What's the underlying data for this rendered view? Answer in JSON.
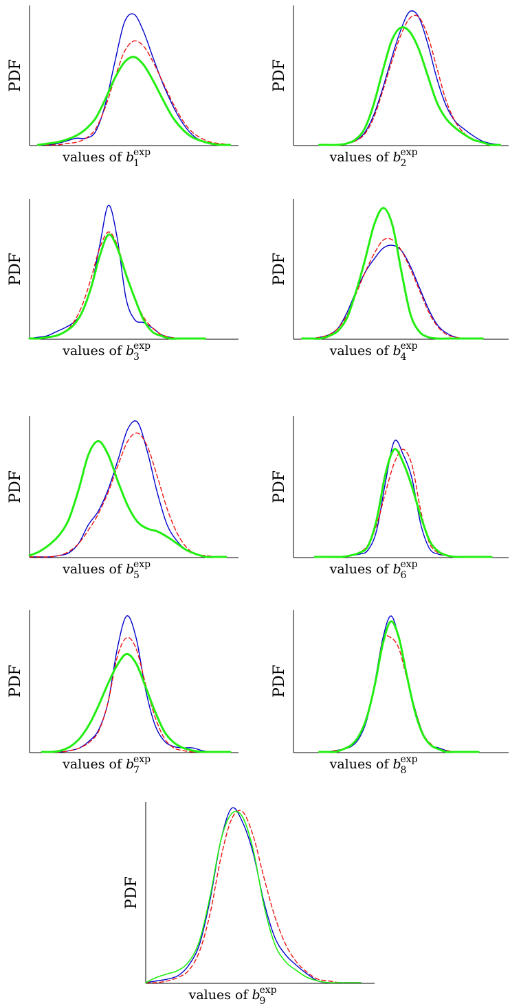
{
  "chart_data": [
    {
      "type": "line",
      "ylabel": "PDF",
      "xlabel": "values of",
      "var": "b",
      "sub": "1",
      "sup": "exp",
      "x": [
        0,
        0.05,
        0.1,
        0.15,
        0.2,
        0.25,
        0.3,
        0.35,
        0.4,
        0.45,
        0.5,
        0.55,
        0.6,
        0.65,
        0.7,
        0.75,
        0.8,
        0.85,
        0.9,
        0.95,
        1
      ],
      "series": [
        {
          "color": "#0000cc",
          "style": "solid",
          "width": 1.4,
          "y": [
            0,
            0,
            0.01,
            0.03,
            0.05,
            0.05,
            0.1,
            0.3,
            0.62,
            0.92,
            0.98,
            0.85,
            0.65,
            0.46,
            0.3,
            0.17,
            0.08,
            0.03,
            0.01,
            0,
            0
          ]
        },
        {
          "color": "#ee1111",
          "style": "dashed",
          "width": 1.4,
          "y": [
            0,
            0,
            0,
            0.01,
            0.02,
            0.05,
            0.12,
            0.28,
            0.5,
            0.7,
            0.78,
            0.74,
            0.62,
            0.47,
            0.32,
            0.19,
            0.1,
            0.05,
            0.02,
            0.01,
            0
          ]
        },
        {
          "color": "#22ee11",
          "style": "solid",
          "width": 3,
          "y": [
            0,
            0.01,
            0.02,
            0.04,
            0.07,
            0.12,
            0.2,
            0.34,
            0.5,
            0.62,
            0.66,
            0.6,
            0.48,
            0.34,
            0.21,
            0.12,
            0.06,
            0.03,
            0.01,
            0,
            0
          ]
        }
      ]
    },
    {
      "type": "line",
      "ylabel": "PDF",
      "xlabel": "values of",
      "var": "b",
      "sub": "2",
      "sup": "exp",
      "x": [
        0,
        0.05,
        0.1,
        0.15,
        0.2,
        0.25,
        0.3,
        0.35,
        0.4,
        0.45,
        0.5,
        0.55,
        0.6,
        0.65,
        0.7,
        0.75,
        0.8,
        0.85,
        0.9,
        0.95,
        1
      ],
      "series": [
        {
          "color": "#0000cc",
          "style": "solid",
          "width": 1.4,
          "y": [
            0,
            0,
            0,
            0.01,
            0.03,
            0.09,
            0.22,
            0.42,
            0.65,
            0.86,
            1.0,
            0.96,
            0.76,
            0.5,
            0.3,
            0.18,
            0.12,
            0.07,
            0.03,
            0.01,
            0
          ]
        },
        {
          "color": "#ee1111",
          "style": "dashed",
          "width": 1.4,
          "y": [
            0,
            0,
            0,
            0.01,
            0.03,
            0.08,
            0.2,
            0.4,
            0.62,
            0.82,
            0.95,
            0.96,
            0.82,
            0.58,
            0.34,
            0.18,
            0.09,
            0.04,
            0.02,
            0,
            0
          ]
        },
        {
          "color": "#22ee11",
          "style": "solid",
          "width": 3,
          "y": [
            0,
            0,
            0,
            0.01,
            0.04,
            0.12,
            0.3,
            0.55,
            0.78,
            0.88,
            0.85,
            0.72,
            0.52,
            0.32,
            0.2,
            0.13,
            0.08,
            0.04,
            0.02,
            0,
            0
          ]
        }
      ]
    },
    {
      "type": "line",
      "ylabel": "PDF",
      "xlabel": "values of",
      "var": "b",
      "sub": "3",
      "sup": "exp",
      "x": [
        0,
        0.05,
        0.1,
        0.15,
        0.2,
        0.25,
        0.3,
        0.35,
        0.4,
        0.45,
        0.5,
        0.55,
        0.6,
        0.65,
        0.7,
        0.75,
        0.8,
        0.85,
        0.9,
        0.95,
        1
      ],
      "series": [
        {
          "color": "#0000cc",
          "style": "solid",
          "width": 1.4,
          "y": [
            0,
            0.01,
            0.02,
            0.05,
            0.08,
            0.12,
            0.2,
            0.38,
            0.7,
            1.0,
            0.75,
            0.3,
            0.14,
            0.12,
            0.08,
            0.03,
            0.01,
            0,
            0,
            0,
            0
          ]
        },
        {
          "color": "#ee1111",
          "style": "dashed",
          "width": 1.4,
          "y": [
            0,
            0,
            0.01,
            0.02,
            0.05,
            0.12,
            0.25,
            0.45,
            0.68,
            0.8,
            0.7,
            0.48,
            0.3,
            0.16,
            0.08,
            0.03,
            0.01,
            0,
            0,
            0,
            0
          ]
        },
        {
          "color": "#22ee11",
          "style": "solid",
          "width": 3,
          "y": [
            0,
            0,
            0.01,
            0.02,
            0.05,
            0.1,
            0.2,
            0.38,
            0.62,
            0.78,
            0.68,
            0.48,
            0.3,
            0.14,
            0.05,
            0.02,
            0,
            0,
            0,
            0,
            0
          ]
        }
      ]
    },
    {
      "type": "line",
      "ylabel": "PDF",
      "xlabel": "values of",
      "var": "b",
      "sub": "4",
      "sup": "exp",
      "x": [
        0,
        0.05,
        0.1,
        0.15,
        0.2,
        0.25,
        0.3,
        0.35,
        0.4,
        0.45,
        0.5,
        0.55,
        0.6,
        0.65,
        0.7,
        0.75,
        0.8,
        0.85,
        0.9,
        0.95,
        1
      ],
      "series": [
        {
          "color": "#0000cc",
          "style": "solid",
          "width": 1.4,
          "y": [
            0,
            0,
            0.01,
            0.03,
            0.08,
            0.2,
            0.36,
            0.5,
            0.6,
            0.68,
            0.7,
            0.66,
            0.54,
            0.38,
            0.22,
            0.1,
            0.04,
            0.01,
            0,
            0,
            0
          ]
        },
        {
          "color": "#ee1111",
          "style": "dashed",
          "width": 1.4,
          "y": [
            0,
            0,
            0.01,
            0.03,
            0.08,
            0.18,
            0.34,
            0.5,
            0.64,
            0.74,
            0.74,
            0.66,
            0.52,
            0.36,
            0.2,
            0.09,
            0.03,
            0.01,
            0,
            0,
            0
          ]
        },
        {
          "color": "#22ee11",
          "style": "solid",
          "width": 3,
          "y": [
            0,
            0,
            0,
            0.02,
            0.06,
            0.16,
            0.36,
            0.6,
            0.86,
            0.98,
            0.85,
            0.5,
            0.18,
            0.05,
            0.01,
            0,
            0,
            0,
            0,
            0,
            0
          ]
        }
      ]
    },
    {
      "type": "line",
      "ylabel": "PDF",
      "xlabel": "values of",
      "var": "b",
      "sub": "5",
      "sup": "exp",
      "x": [
        0,
        0.05,
        0.1,
        0.15,
        0.2,
        0.25,
        0.3,
        0.35,
        0.4,
        0.45,
        0.5,
        0.55,
        0.6,
        0.65,
        0.7,
        0.75,
        0.8,
        0.85,
        0.9,
        0.95,
        1
      ],
      "series": [
        {
          "color": "#0000cc",
          "style": "solid",
          "width": 1.4,
          "y": [
            0,
            0,
            0,
            0.01,
            0.03,
            0.1,
            0.24,
            0.34,
            0.5,
            0.72,
            0.95,
            1.0,
            0.78,
            0.48,
            0.24,
            0.12,
            0.05,
            0.02,
            0,
            0,
            0
          ]
        },
        {
          "color": "#ee1111",
          "style": "dashed",
          "width": 1.4,
          "y": [
            0,
            0,
            0,
            0.01,
            0.04,
            0.1,
            0.2,
            0.32,
            0.48,
            0.68,
            0.86,
            0.92,
            0.82,
            0.6,
            0.36,
            0.18,
            0.07,
            0.02,
            0.01,
            0,
            0
          ]
        },
        {
          "color": "#22ee11",
          "style": "solid",
          "width": 3,
          "y": [
            0.01,
            0.04,
            0.09,
            0.16,
            0.28,
            0.5,
            0.76,
            0.86,
            0.76,
            0.56,
            0.38,
            0.26,
            0.21,
            0.19,
            0.15,
            0.1,
            0.05,
            0.02,
            0,
            0,
            0
          ]
        }
      ]
    },
    {
      "type": "line",
      "ylabel": "PDF",
      "xlabel": "values of",
      "var": "b",
      "sub": "6",
      "sup": "exp",
      "x": [
        0,
        0.05,
        0.1,
        0.15,
        0.2,
        0.25,
        0.3,
        0.35,
        0.4,
        0.45,
        0.5,
        0.55,
        0.6,
        0.65,
        0.7,
        0.75,
        0.8,
        0.85,
        0.9,
        0.95,
        1
      ],
      "series": [
        {
          "color": "#0000cc",
          "style": "solid",
          "width": 1.4,
          "y": [
            0,
            0,
            0,
            0,
            0.01,
            0.02,
            0.05,
            0.2,
            0.56,
            0.86,
            0.76,
            0.58,
            0.24,
            0.06,
            0.02,
            0.01,
            0,
            0,
            0,
            0,
            0
          ]
        },
        {
          "color": "#ee1111",
          "style": "dashed",
          "width": 1.4,
          "y": [
            0,
            0,
            0,
            0,
            0.01,
            0.03,
            0.09,
            0.24,
            0.48,
            0.7,
            0.8,
            0.68,
            0.34,
            0.1,
            0.03,
            0.01,
            0,
            0,
            0,
            0,
            0
          ]
        },
        {
          "color": "#22ee11",
          "style": "solid",
          "width": 3,
          "y": [
            0,
            0,
            0,
            0,
            0.01,
            0.03,
            0.08,
            0.28,
            0.62,
            0.8,
            0.7,
            0.52,
            0.3,
            0.12,
            0.04,
            0.01,
            0,
            0,
            0,
            0,
            0
          ]
        }
      ]
    },
    {
      "type": "line",
      "ylabel": "PDF",
      "xlabel": "values of",
      "var": "b",
      "sub": "7",
      "sup": "exp",
      "x": [
        0,
        0.05,
        0.1,
        0.15,
        0.2,
        0.25,
        0.3,
        0.35,
        0.4,
        0.45,
        0.5,
        0.55,
        0.6,
        0.65,
        0.7,
        0.75,
        0.8,
        0.85,
        0.9,
        0.95,
        1
      ],
      "series": [
        {
          "color": "#0000cc",
          "style": "solid",
          "width": 1.4,
          "y": [
            0,
            0,
            0,
            0.01,
            0.03,
            0.08,
            0.16,
            0.36,
            0.76,
            1.0,
            0.84,
            0.46,
            0.2,
            0.08,
            0.04,
            0.03,
            0.03,
            0.01,
            0,
            0,
            0
          ]
        },
        {
          "color": "#ee1111",
          "style": "dashed",
          "width": 1.4,
          "y": [
            0,
            0,
            0,
            0.01,
            0.03,
            0.07,
            0.15,
            0.36,
            0.7,
            0.84,
            0.76,
            0.5,
            0.26,
            0.1,
            0.03,
            0.01,
            0,
            0,
            0,
            0,
            0
          ]
        },
        {
          "color": "#22ee11",
          "style": "solid",
          "width": 3,
          "y": [
            0,
            0,
            0.01,
            0.04,
            0.1,
            0.2,
            0.34,
            0.5,
            0.64,
            0.72,
            0.65,
            0.48,
            0.3,
            0.15,
            0.07,
            0.03,
            0.01,
            0,
            0,
            0,
            0
          ]
        }
      ]
    },
    {
      "type": "line",
      "ylabel": "PDF",
      "xlabel": "values of",
      "var": "b",
      "sub": "8",
      "sup": "exp",
      "x": [
        0,
        0.05,
        0.1,
        0.15,
        0.2,
        0.25,
        0.3,
        0.35,
        0.4,
        0.45,
        0.5,
        0.55,
        0.6,
        0.65,
        0.7,
        0.75,
        0.8,
        0.85,
        0.9,
        0.95,
        1
      ],
      "series": [
        {
          "color": "#0000cc",
          "style": "solid",
          "width": 1.4,
          "y": [
            0,
            0,
            0.01,
            0.02,
            0.04,
            0.1,
            0.24,
            0.52,
            0.84,
            1.0,
            0.84,
            0.56,
            0.32,
            0.14,
            0.05,
            0.03,
            0.01,
            0,
            0,
            0,
            0
          ]
        },
        {
          "color": "#ee1111",
          "style": "dashed",
          "width": 1.4,
          "y": [
            0,
            0,
            0.01,
            0.02,
            0.05,
            0.12,
            0.26,
            0.5,
            0.82,
            0.84,
            0.76,
            0.54,
            0.32,
            0.14,
            0.06,
            0.02,
            0.01,
            0,
            0,
            0,
            0
          ]
        },
        {
          "color": "#22ee11",
          "style": "solid",
          "width": 3,
          "y": [
            0,
            0,
            0,
            0.02,
            0.05,
            0.12,
            0.26,
            0.5,
            0.8,
            0.96,
            0.84,
            0.56,
            0.3,
            0.13,
            0.05,
            0.02,
            0,
            0,
            0,
            0,
            0
          ]
        }
      ]
    },
    {
      "type": "line",
      "ylabel": "PDF",
      "xlabel": "values of",
      "var": "b",
      "sub": "9",
      "sup": "exp",
      "x": [
        0,
        0.05,
        0.1,
        0.15,
        0.2,
        0.25,
        0.3,
        0.35,
        0.4,
        0.45,
        0.5,
        0.55,
        0.6,
        0.65,
        0.7,
        0.75,
        0.8,
        0.85,
        0.9,
        0.95,
        1
      ],
      "series": [
        {
          "color": "#0000cc",
          "style": "solid",
          "width": 1.4,
          "y": [
            0,
            0.01,
            0.02,
            0.04,
            0.1,
            0.22,
            0.48,
            0.82,
            1.0,
            0.92,
            0.74,
            0.46,
            0.26,
            0.16,
            0.1,
            0.05,
            0.01,
            0,
            0,
            0,
            0
          ]
        },
        {
          "color": "#ee1111",
          "style": "dashed",
          "width": 1.4,
          "y": [
            0,
            0,
            0.01,
            0.03,
            0.07,
            0.18,
            0.4,
            0.72,
            0.94,
            0.98,
            0.84,
            0.6,
            0.38,
            0.22,
            0.12,
            0.06,
            0.02,
            0.01,
            0,
            0,
            0
          ]
        },
        {
          "color": "#22ee11",
          "style": "solid",
          "width": 1.6,
          "y": [
            0,
            0.03,
            0.05,
            0.07,
            0.12,
            0.24,
            0.5,
            0.82,
            0.97,
            0.95,
            0.76,
            0.44,
            0.22,
            0.12,
            0.07,
            0.03,
            0.01,
            0,
            0,
            0,
            0
          ]
        }
      ]
    }
  ]
}
